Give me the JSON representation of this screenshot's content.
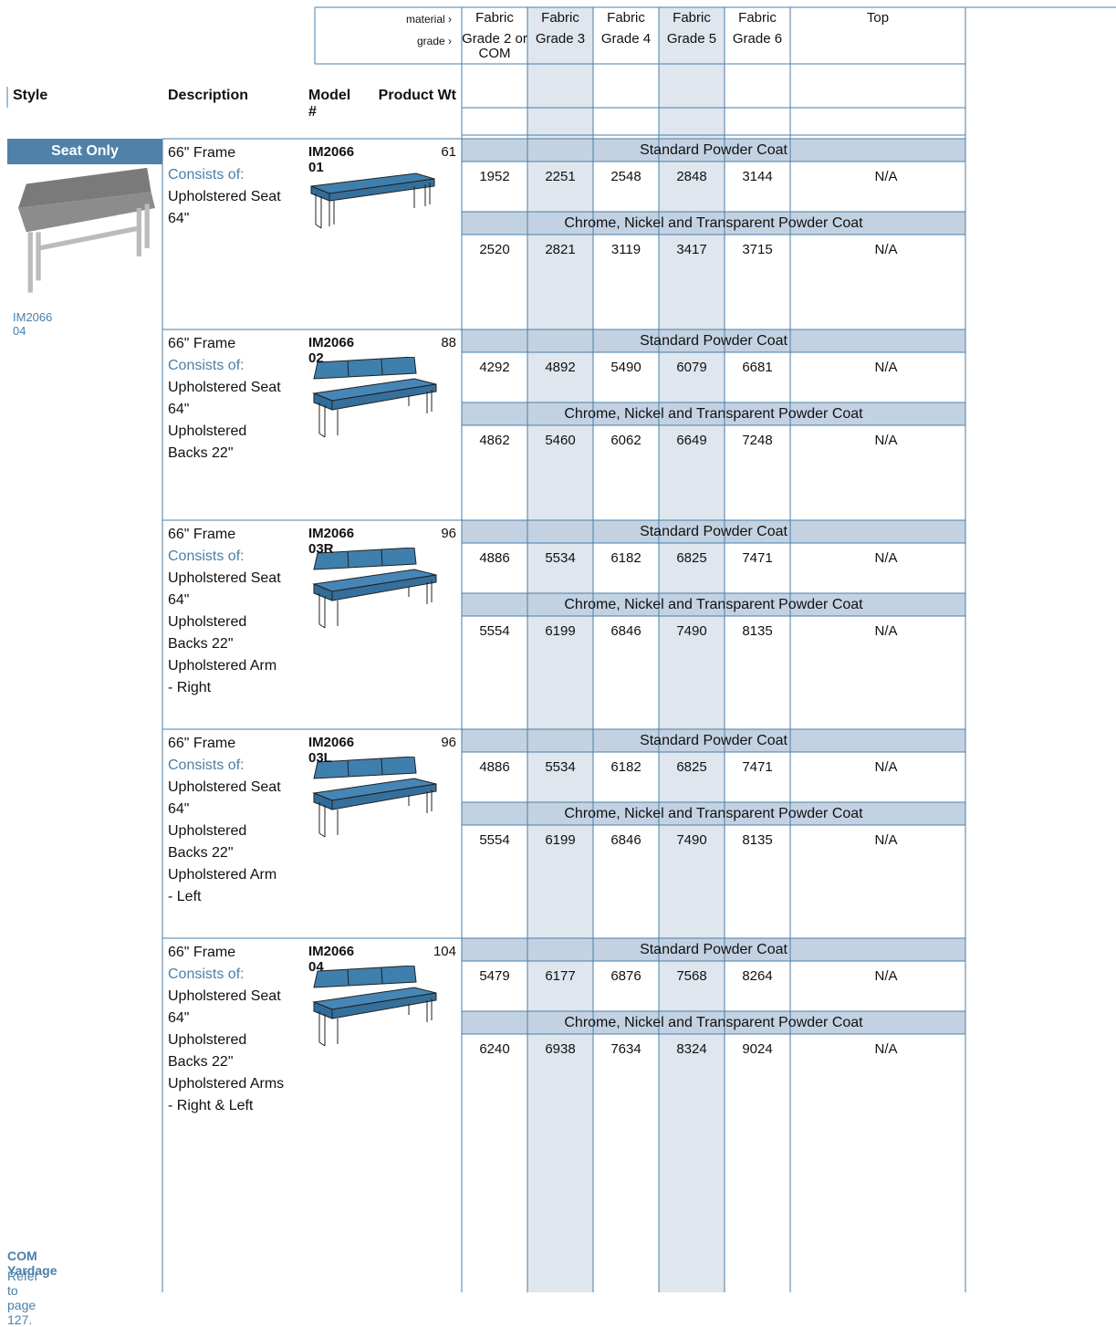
{
  "header": {
    "material_label": "material ›",
    "grade_label": "grade ›",
    "columns": [
      {
        "material": "Fabric",
        "grade": "Grade 2 or COM"
      },
      {
        "material": "Fabric",
        "grade": "Grade 3"
      },
      {
        "material": "Fabric",
        "grade": "Grade 4"
      },
      {
        "material": "Fabric",
        "grade": "Grade 5"
      },
      {
        "material": "Fabric",
        "grade": "Grade 6"
      }
    ],
    "top_column": "Top"
  },
  "column_headers": {
    "style": "Style",
    "description": "Description",
    "model": "Model #",
    "weight": "Product Wt"
  },
  "style": {
    "label": "Seat Only",
    "image_caption": "IM2066 04"
  },
  "products": [
    {
      "frame": "66\" Frame",
      "consists_label": "Consists of:",
      "components": [
        "Upholstered Seat 64\""
      ],
      "model": "IM2066 01",
      "weight": 61,
      "finishes": [
        {
          "name": "Standard Powder Coat",
          "prices": [
            1952,
            2251,
            2548,
            2848,
            3144
          ],
          "top": "N/A"
        },
        {
          "name": "Chrome, Nickel and Transparent Powder Coat",
          "prices": [
            2520,
            2821,
            3119,
            3417,
            3715
          ],
          "top": "N/A"
        }
      ]
    },
    {
      "frame": "66\" Frame",
      "consists_label": "Consists of:",
      "components": [
        "Upholstered Seat 64\"",
        "Upholstered Backs 22\""
      ],
      "model": "IM2066 02",
      "weight": 88,
      "finishes": [
        {
          "name": "Standard Powder Coat",
          "prices": [
            4292,
            4892,
            5490,
            6079,
            6681
          ],
          "top": "N/A"
        },
        {
          "name": "Chrome, Nickel and Transparent Powder Coat",
          "prices": [
            4862,
            5460,
            6062,
            6649,
            7248
          ],
          "top": "N/A"
        }
      ]
    },
    {
      "frame": "66\" Frame",
      "consists_label": "Consists of:",
      "components": [
        "Upholstered Seat 64\"",
        "Upholstered Backs 22\"",
        "Upholstered Arm - Right"
      ],
      "model": "IM2066 03R",
      "weight": 96,
      "finishes": [
        {
          "name": "Standard Powder Coat",
          "prices": [
            4886,
            5534,
            6182,
            6825,
            7471
          ],
          "top": "N/A"
        },
        {
          "name": "Chrome, Nickel and Transparent Powder Coat",
          "prices": [
            5554,
            6199,
            6846,
            7490,
            8135
          ],
          "top": "N/A"
        }
      ]
    },
    {
      "frame": "66\" Frame",
      "consists_label": "Consists of:",
      "components": [
        "Upholstered Seat 64\"",
        "Upholstered Backs 22\"",
        "Upholstered Arm - Left"
      ],
      "model": "IM2066 03L",
      "weight": 96,
      "finishes": [
        {
          "name": "Standard Powder Coat",
          "prices": [
            4886,
            5534,
            6182,
            6825,
            7471
          ],
          "top": "N/A"
        },
        {
          "name": "Chrome, Nickel and Transparent Powder Coat",
          "prices": [
            5554,
            6199,
            6846,
            7490,
            8135
          ],
          "top": "N/A"
        }
      ]
    },
    {
      "frame": "66\" Frame",
      "consists_label": "Consists of:",
      "components": [
        "Upholstered Seat 64\"",
        "Upholstered Backs 22\"",
        "Upholstered Arms - Right & Left"
      ],
      "model": "IM2066 04",
      "weight": 104,
      "finishes": [
        {
          "name": "Standard Powder Coat",
          "prices": [
            5479,
            6177,
            6876,
            7568,
            8264
          ],
          "top": "N/A"
        },
        {
          "name": "Chrome, Nickel and Transparent Powder Coat",
          "prices": [
            6240,
            6938,
            7634,
            8324,
            9024
          ],
          "top": "N/A"
        }
      ]
    }
  ],
  "footer": {
    "title": "COM Yardage",
    "note": "Refer to page 127."
  }
}
